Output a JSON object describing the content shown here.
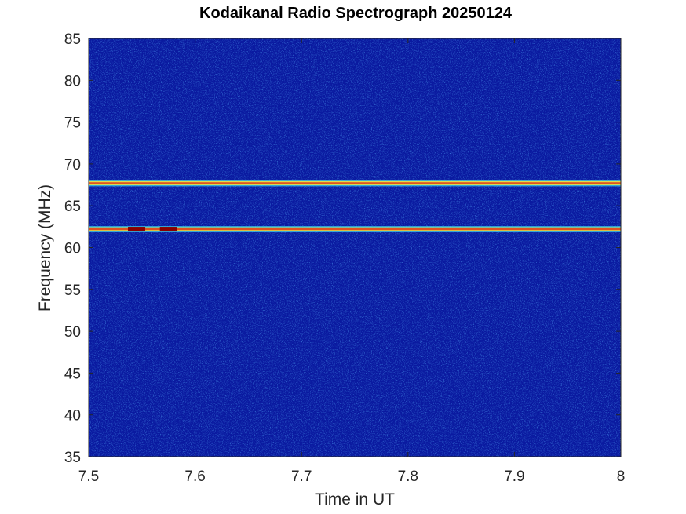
{
  "chart_data": {
    "type": "heatmap",
    "title": "Kodaikanal Radio Spectrograph  20250124",
    "xlabel": "Time in UT",
    "ylabel": "Frequency (MHz)",
    "xlim": [
      7.5,
      8
    ],
    "ylim": [
      35,
      85
    ],
    "xticks": [
      7.5,
      7.6,
      7.7,
      7.8,
      7.9,
      8
    ],
    "xtick_labels": [
      "7.5",
      "7.6",
      "7.7",
      "7.8",
      "7.9",
      "8"
    ],
    "yticks": [
      35,
      40,
      45,
      50,
      55,
      60,
      65,
      70,
      75,
      80,
      85
    ],
    "ytick_labels": [
      "35",
      "40",
      "45",
      "50",
      "55",
      "60",
      "65",
      "70",
      "75",
      "80",
      "85"
    ],
    "colormap": "jet",
    "background_color": "#0a1aa0",
    "bands": [
      {
        "freq_mhz": 67.7,
        "intensity": "high"
      },
      {
        "freq_mhz": 62.2,
        "intensity": "high"
      }
    ],
    "hot_spots": [
      {
        "time_ut": 7.545,
        "freq_mhz": 62.2
      },
      {
        "time_ut": 7.575,
        "freq_mhz": 62.2
      }
    ],
    "grid": false,
    "legend": "none"
  }
}
